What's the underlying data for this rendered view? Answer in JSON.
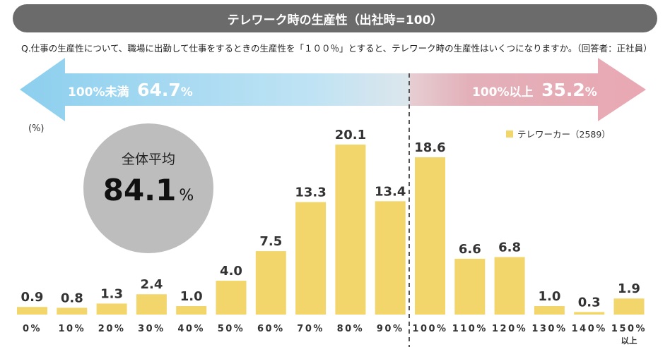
{
  "title": "テレワーク時の生産性（出社時=100）",
  "question": "Q.仕事の生産性について、職場に出勤して仕事をするときの生産性を「１００％」とすると、テレワーク時の生産性はいくつになりますか。（回答者：正社員）",
  "left_arrow": {
    "label": "100%未満",
    "value": "64.7",
    "unit": "%"
  },
  "right_arrow": {
    "label": "100%以上",
    "value": "35.2",
    "unit": "%"
  },
  "unit_label": "(%)",
  "average": {
    "label": "全体平均",
    "value": "84.1",
    "unit": "%"
  },
  "legend": {
    "label": "テレワーカー（2589）"
  },
  "colors": {
    "bar": "#f2d66b",
    "banner": "#6b6b6b",
    "left_arrow": "#8ccfee",
    "right_arrow": "#e9a8b3",
    "circle": "#bdbdbd"
  },
  "chart_data": {
    "type": "bar",
    "categories": [
      "0%",
      "10%",
      "20%",
      "30%",
      "40%",
      "50%",
      "60%",
      "70%",
      "80%",
      "90%",
      "100%",
      "110%",
      "120%",
      "130%",
      "140%",
      "150%\n以上"
    ],
    "series": [
      {
        "name": "テレワーカー（2589）",
        "values": [
          0.9,
          0.8,
          1.3,
          2.4,
          1.0,
          4.0,
          7.5,
          13.3,
          20.1,
          13.4,
          18.6,
          6.6,
          6.8,
          1.0,
          0.3,
          1.9
        ]
      }
    ],
    "ylim": [
      0,
      20.1
    ],
    "grid": false,
    "legend_position": "top-right"
  }
}
